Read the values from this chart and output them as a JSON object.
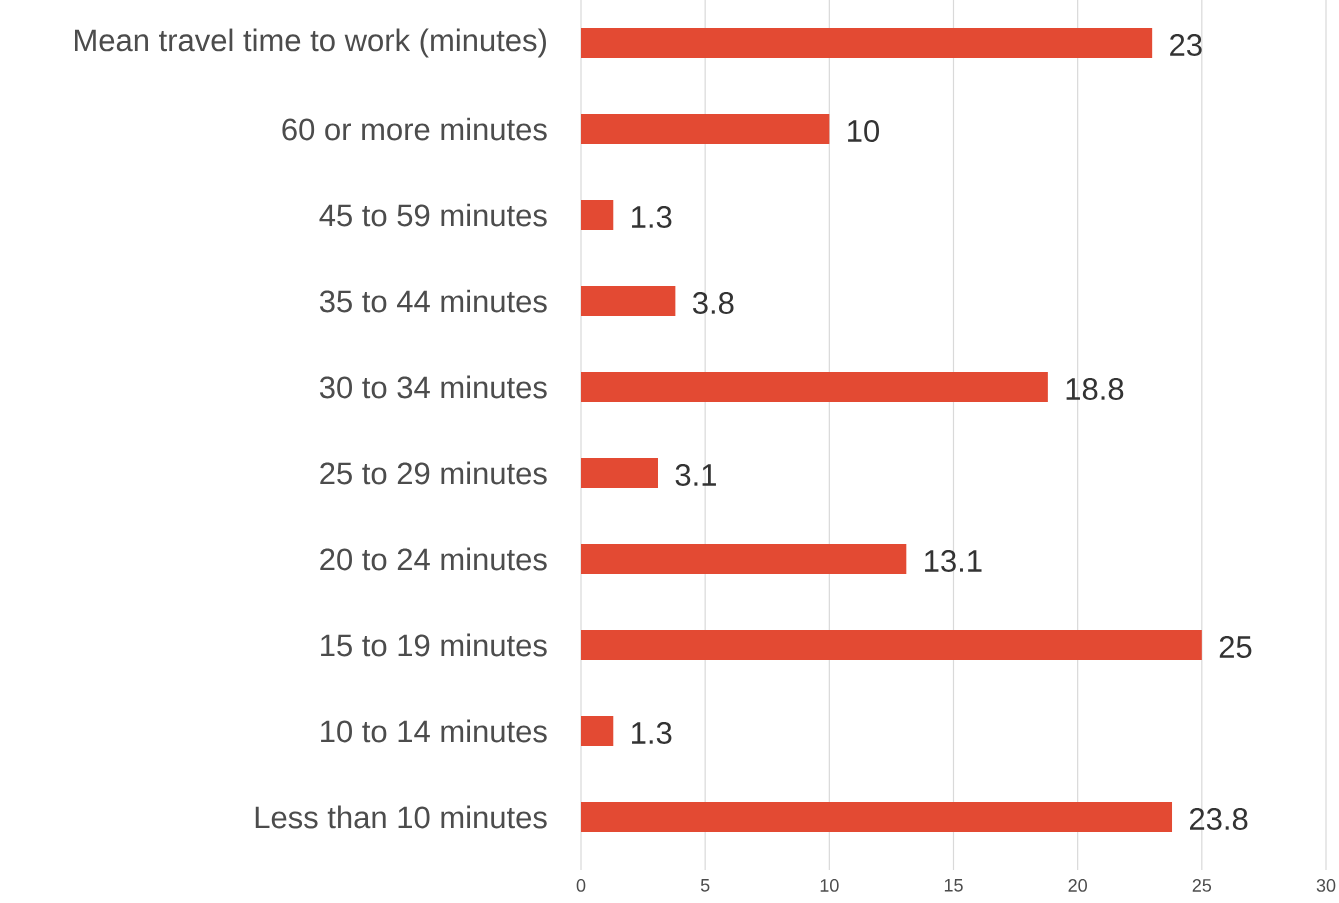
{
  "chart_data": {
    "type": "bar",
    "orientation": "horizontal",
    "categories": [
      "Mean travel time to work (minutes)",
      "60 or more minutes",
      "45 to 59 minutes",
      "35 to 44 minutes",
      "30 to 34 minutes",
      "25 to 29 minutes",
      "20 to 24 minutes",
      "15 to 19 minutes",
      "10 to 14 minutes",
      "Less than 10 minutes"
    ],
    "values": [
      23,
      10,
      1.3,
      3.8,
      18.8,
      3.1,
      13.1,
      25,
      1.3,
      23.8
    ],
    "color": "#e34a33",
    "xlim": [
      0,
      30
    ],
    "xticks": [
      0,
      5,
      10,
      15,
      20,
      25,
      30
    ],
    "grid": "x",
    "data_labels": true
  }
}
